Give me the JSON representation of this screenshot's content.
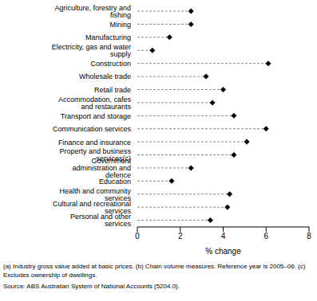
{
  "chart_data": {
    "type": "dot",
    "orientation": "horizontal",
    "categories": [
      "Agriculture, forestry and fishing",
      "Mining",
      "Manufacturing",
      "Electricity, gas and water supply",
      "Construction",
      "Wholesale trade",
      "Retail trade",
      "Accommodation, cafes and restaurants",
      "Transport and storage",
      "Communication services",
      "Finance and insurance",
      "Property and business services(c)",
      "Government administration and defence",
      "Education",
      "Health and community services",
      "Cultural and recreational services",
      "Personal and other services"
    ],
    "values": [
      2.5,
      2.5,
      1.5,
      0.7,
      6.1,
      3.2,
      4.0,
      3.5,
      4.5,
      6.0,
      5.1,
      4.5,
      2.5,
      1.6,
      4.3,
      4.2,
      3.4
    ],
    "color": "#000000",
    "marker": "diamond",
    "line_style": "dashed",
    "x_label": "% change",
    "xlim": [
      0,
      8
    ],
    "xticks": [
      0,
      2,
      4,
      6,
      8
    ],
    "grid": false,
    "annotations": [
      "(a) Industry gross value added at basic prices. (b) Chain volume measures. Reference year is 2005–06. (c) Excludes ownership of dwellings.",
      "Source: ABS Australian System of National Accounts (5204.0)."
    ]
  }
}
